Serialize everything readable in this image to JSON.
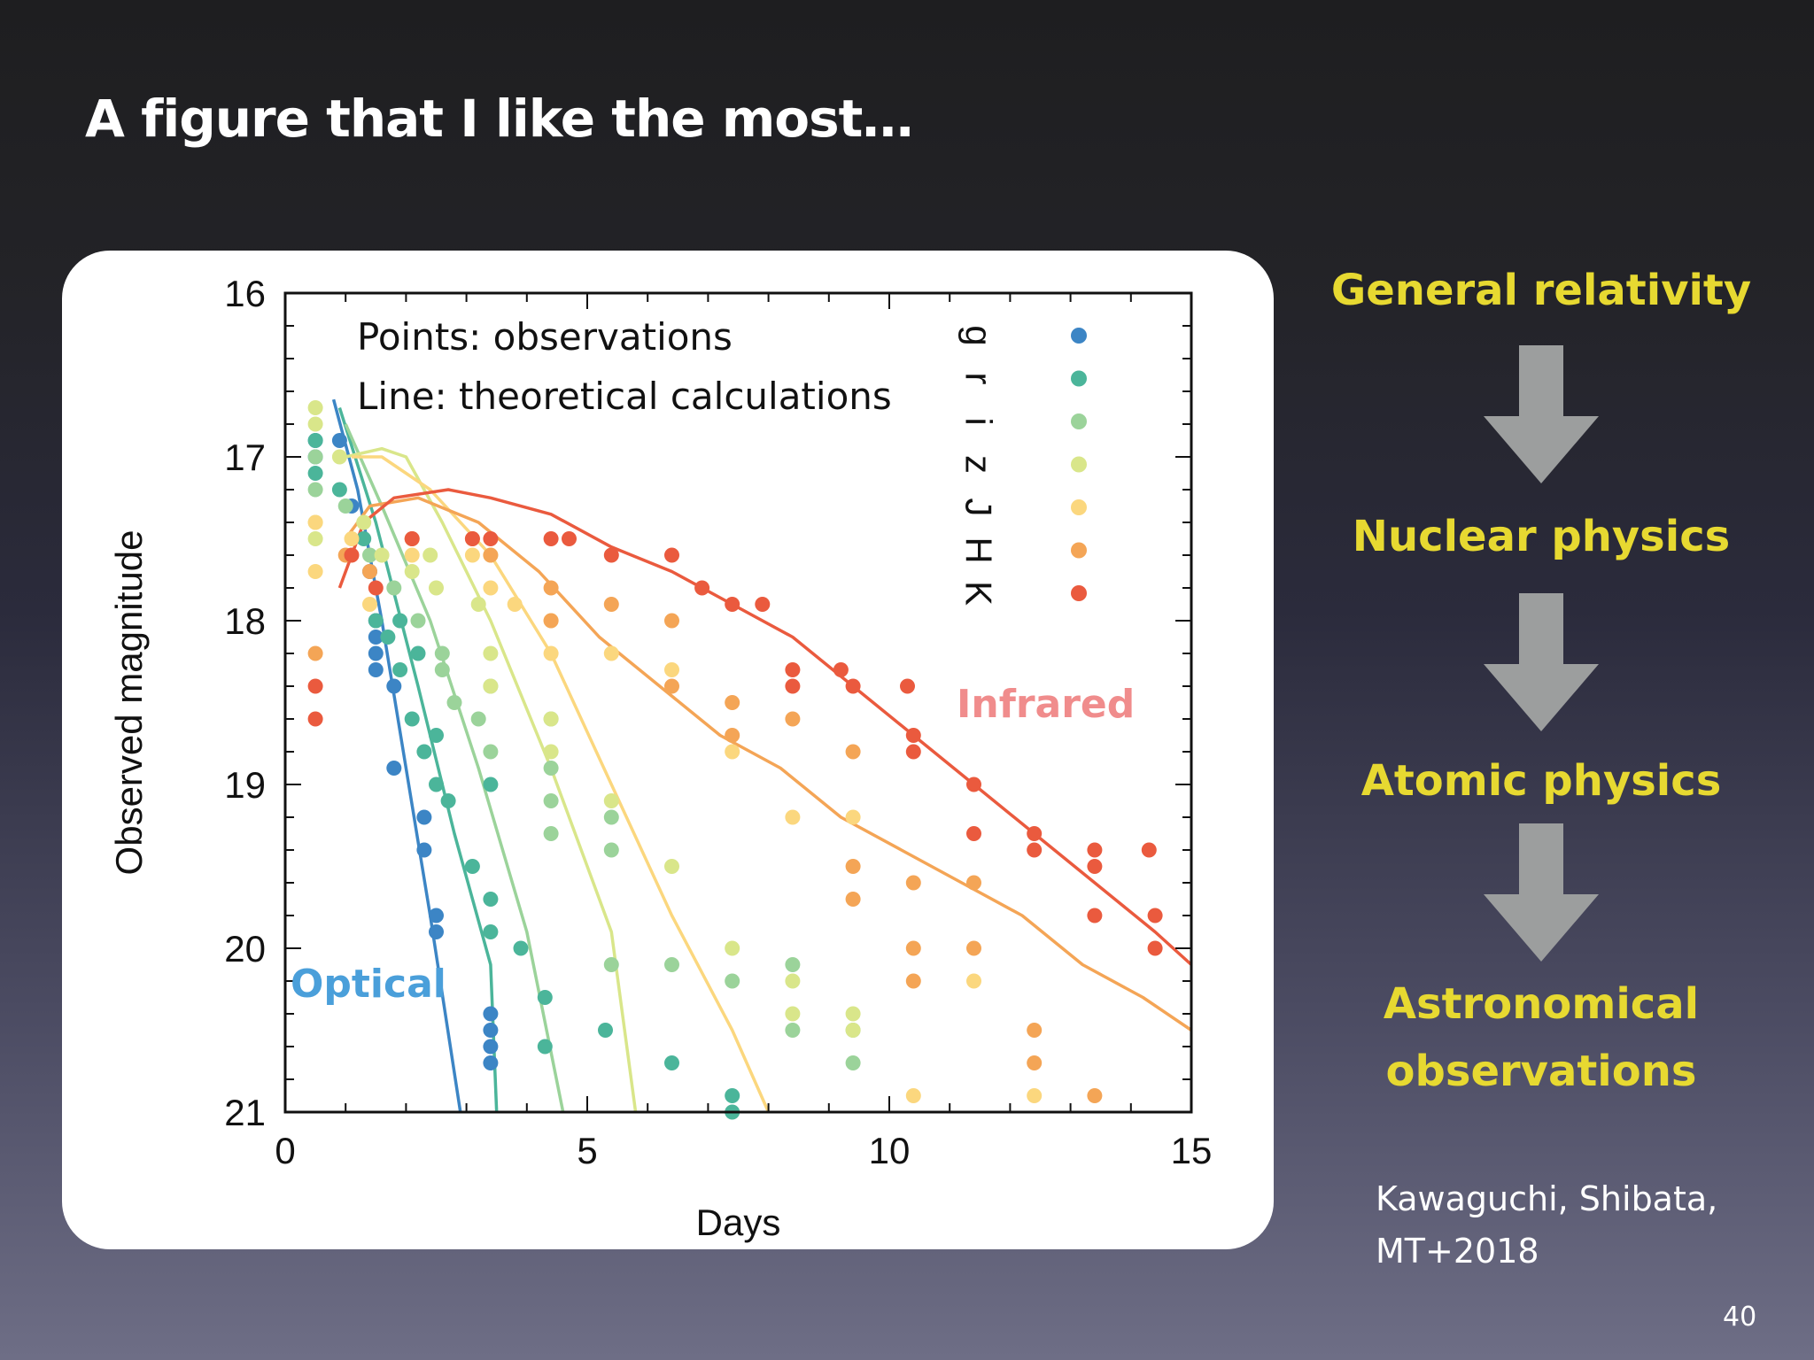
{
  "slide": {
    "title": "A figure that I like the most…",
    "flow": [
      "General relativity",
      "Nuclear physics",
      "Atomic physics",
      "Astronomical",
      "observations"
    ],
    "citation": [
      "Kawaguchi, Shibata,",
      "MT+2018"
    ],
    "page_number": "40",
    "colors": {
      "title": "#ffffff",
      "flow_text": "#e7d931",
      "arrow": "#9c9e9e"
    }
  },
  "chart_data": {
    "type": "scatter",
    "xlabel": "Days",
    "ylabel": "Observed magnitude",
    "xlim": [
      0,
      15
    ],
    "ylim": [
      21,
      16
    ],
    "x_ticks": [
      0,
      5,
      10,
      15
    ],
    "y_ticks": [
      16,
      17,
      18,
      19,
      20,
      21
    ],
    "annotations": {
      "points": "Points: observations",
      "line": "Line: theoretical calculations",
      "optical": "Optical",
      "infrared": "Infrared"
    },
    "annotation_colors": {
      "optical": "#4a9fda",
      "infrared": "#f08c8c"
    },
    "legend": [
      "g",
      "r",
      "i",
      "z",
      "J",
      "H",
      "K"
    ],
    "legend_placement": "top-right",
    "series": [
      {
        "name": "g",
        "color": "#3c85c5",
        "points": [
          [
            0.5,
            16.9
          ],
          [
            0.5,
            17.0
          ],
          [
            0.9,
            16.9
          ],
          [
            1.1,
            17.3
          ],
          [
            1.4,
            17.7
          ],
          [
            1.5,
            18.0
          ],
          [
            1.5,
            18.1
          ],
          [
            1.5,
            18.2
          ],
          [
            1.5,
            18.3
          ],
          [
            1.8,
            18.4
          ],
          [
            1.8,
            18.9
          ],
          [
            2.3,
            19.2
          ],
          [
            2.3,
            19.4
          ],
          [
            2.5,
            19.8
          ],
          [
            2.5,
            19.9
          ],
          [
            3.4,
            20.4
          ],
          [
            3.4,
            20.5
          ],
          [
            3.4,
            20.6
          ],
          [
            3.4,
            20.7
          ]
        ],
        "line": [
          [
            0.8,
            16.65
          ],
          [
            1.2,
            17.2
          ],
          [
            1.6,
            18.0
          ],
          [
            2.0,
            18.9
          ],
          [
            2.4,
            19.8
          ],
          [
            2.9,
            21.0
          ]
        ]
      },
      {
        "name": "r",
        "color": "#4bb59a",
        "points": [
          [
            0.5,
            16.9
          ],
          [
            0.5,
            17.1
          ],
          [
            0.9,
            17.2
          ],
          [
            1.3,
            17.5
          ],
          [
            1.5,
            18.0
          ],
          [
            1.7,
            18.1
          ],
          [
            1.9,
            18.3
          ],
          [
            2.1,
            18.6
          ],
          [
            2.3,
            18.8
          ],
          [
            2.5,
            19.0
          ],
          [
            2.5,
            18.7
          ],
          [
            2.7,
            19.1
          ],
          [
            3.1,
            19.5
          ],
          [
            3.4,
            19.7
          ],
          [
            3.4,
            19.9
          ],
          [
            3.4,
            19.0
          ],
          [
            3.9,
            20.0
          ],
          [
            4.3,
            20.3
          ],
          [
            4.3,
            20.6
          ],
          [
            5.3,
            20.5
          ],
          [
            6.4,
            20.7
          ],
          [
            7.4,
            20.9
          ],
          [
            7.4,
            21.0
          ],
          [
            2.2,
            18.2
          ],
          [
            1.9,
            18.0
          ]
        ],
        "line": [
          [
            0.9,
            16.7
          ],
          [
            1.5,
            17.4
          ],
          [
            2.2,
            18.4
          ],
          [
            2.8,
            19.3
          ],
          [
            3.4,
            20.1
          ],
          [
            3.5,
            21.0
          ]
        ]
      },
      {
        "name": "i",
        "color": "#9bd39a",
        "points": [
          [
            0.5,
            17.0
          ],
          [
            0.5,
            17.2
          ],
          [
            1.0,
            17.3
          ],
          [
            1.4,
            17.6
          ],
          [
            1.8,
            17.8
          ],
          [
            2.2,
            18.0
          ],
          [
            2.6,
            18.2
          ],
          [
            2.8,
            18.5
          ],
          [
            3.2,
            18.6
          ],
          [
            3.4,
            18.8
          ],
          [
            3.4,
            18.4
          ],
          [
            4.4,
            18.9
          ],
          [
            4.4,
            19.1
          ],
          [
            4.4,
            19.3
          ],
          [
            5.4,
            19.2
          ],
          [
            5.4,
            19.4
          ],
          [
            5.4,
            20.1
          ],
          [
            6.4,
            20.1
          ],
          [
            7.4,
            20.2
          ],
          [
            8.4,
            20.1
          ],
          [
            8.4,
            20.5
          ],
          [
            9.4,
            20.5
          ],
          [
            9.4,
            20.7
          ],
          [
            4.4,
            18.6
          ],
          [
            2.6,
            18.3
          ]
        ],
        "line": [
          [
            1.0,
            16.8
          ],
          [
            1.6,
            17.3
          ],
          [
            2.4,
            18.0
          ],
          [
            3.2,
            18.9
          ],
          [
            4.0,
            19.9
          ],
          [
            4.6,
            21.0
          ]
        ]
      },
      {
        "name": "z",
        "color": "#d9e68a",
        "points": [
          [
            0.5,
            16.7
          ],
          [
            0.5,
            16.8
          ],
          [
            0.5,
            17.4
          ],
          [
            0.5,
            17.5
          ],
          [
            0.9,
            17.0
          ],
          [
            1.3,
            17.4
          ],
          [
            1.6,
            17.6
          ],
          [
            2.1,
            17.7
          ],
          [
            2.5,
            17.8
          ],
          [
            3.2,
            17.9
          ],
          [
            3.4,
            18.2
          ],
          [
            3.4,
            18.4
          ],
          [
            4.4,
            18.6
          ],
          [
            4.4,
            18.8
          ],
          [
            5.4,
            19.1
          ],
          [
            6.4,
            19.5
          ],
          [
            7.4,
            20.0
          ],
          [
            8.4,
            20.2
          ],
          [
            8.4,
            20.4
          ],
          [
            9.4,
            20.4
          ],
          [
            9.4,
            20.5
          ],
          [
            3.4,
            17.6
          ],
          [
            2.4,
            17.6
          ]
        ],
        "line": [
          [
            1.0,
            17.0
          ],
          [
            1.6,
            16.95
          ],
          [
            2.0,
            17.0
          ],
          [
            2.6,
            17.4
          ],
          [
            3.4,
            18.0
          ],
          [
            4.4,
            18.9
          ],
          [
            5.4,
            19.9
          ],
          [
            5.8,
            21.0
          ]
        ]
      },
      {
        "name": "J",
        "color": "#fbd77e",
        "points": [
          [
            0.5,
            17.4
          ],
          [
            0.5,
            17.7
          ],
          [
            1.1,
            17.5
          ],
          [
            1.4,
            17.9
          ],
          [
            2.1,
            17.6
          ],
          [
            3.1,
            17.6
          ],
          [
            3.4,
            17.8
          ],
          [
            3.8,
            17.9
          ],
          [
            4.4,
            18.0
          ],
          [
            4.4,
            18.2
          ],
          [
            5.4,
            18.2
          ],
          [
            6.4,
            18.3
          ],
          [
            7.4,
            18.8
          ],
          [
            8.4,
            19.2
          ],
          [
            9.4,
            19.2
          ],
          [
            10.4,
            20.9
          ],
          [
            11.4,
            20.2
          ],
          [
            12.4,
            20.9
          ]
        ],
        "line": [
          [
            1.1,
            17.0
          ],
          [
            1.6,
            17.0
          ],
          [
            2.4,
            17.2
          ],
          [
            3.4,
            17.6
          ],
          [
            4.4,
            18.2
          ],
          [
            5.4,
            19.0
          ],
          [
            6.4,
            19.8
          ],
          [
            7.4,
            20.5
          ],
          [
            8.0,
            21.0
          ]
        ]
      },
      {
        "name": "H",
        "color": "#f4a556",
        "points": [
          [
            0.5,
            18.2
          ],
          [
            1.0,
            17.6
          ],
          [
            1.4,
            17.7
          ],
          [
            2.1,
            17.5
          ],
          [
            3.1,
            17.5
          ],
          [
            3.4,
            17.6
          ],
          [
            4.4,
            17.8
          ],
          [
            4.4,
            18.0
          ],
          [
            5.4,
            17.9
          ],
          [
            6.4,
            18.0
          ],
          [
            6.4,
            18.4
          ],
          [
            7.4,
            18.5
          ],
          [
            7.4,
            18.7
          ],
          [
            8.4,
            18.6
          ],
          [
            9.4,
            18.8
          ],
          [
            9.4,
            19.5
          ],
          [
            9.4,
            19.7
          ],
          [
            10.4,
            19.6
          ],
          [
            10.4,
            20.0
          ],
          [
            10.4,
            20.2
          ],
          [
            11.4,
            19.6
          ],
          [
            11.4,
            20.0
          ],
          [
            12.4,
            20.5
          ],
          [
            12.4,
            20.7
          ],
          [
            13.4,
            20.9
          ]
        ],
        "line": [
          [
            1.0,
            17.5
          ],
          [
            1.4,
            17.3
          ],
          [
            2.2,
            17.25
          ],
          [
            3.2,
            17.4
          ],
          [
            4.2,
            17.7
          ],
          [
            5.2,
            18.1
          ],
          [
            6.2,
            18.4
          ],
          [
            7.2,
            18.7
          ],
          [
            8.2,
            18.9
          ],
          [
            9.2,
            19.2
          ],
          [
            10.2,
            19.4
          ],
          [
            11.2,
            19.6
          ],
          [
            12.2,
            19.8
          ],
          [
            13.2,
            20.1
          ],
          [
            14.2,
            20.3
          ],
          [
            15.0,
            20.5
          ]
        ]
      },
      {
        "name": "K",
        "color": "#ea5a3e",
        "points": [
          [
            0.5,
            18.4
          ],
          [
            0.5,
            18.6
          ],
          [
            1.1,
            17.6
          ],
          [
            1.5,
            17.8
          ],
          [
            2.1,
            17.5
          ],
          [
            3.1,
            17.5
          ],
          [
            3.4,
            17.5
          ],
          [
            4.4,
            17.5
          ],
          [
            4.7,
            17.5
          ],
          [
            5.4,
            17.6
          ],
          [
            6.4,
            17.6
          ],
          [
            6.9,
            17.8
          ],
          [
            7.4,
            17.9
          ],
          [
            7.9,
            17.9
          ],
          [
            8.4,
            18.3
          ],
          [
            8.4,
            18.4
          ],
          [
            9.2,
            18.3
          ],
          [
            9.4,
            18.4
          ],
          [
            10.3,
            18.4
          ],
          [
            10.4,
            18.7
          ],
          [
            10.4,
            18.8
          ],
          [
            11.4,
            19.0
          ],
          [
            11.4,
            19.3
          ],
          [
            12.4,
            19.3
          ],
          [
            12.4,
            19.4
          ],
          [
            13.4,
            19.4
          ],
          [
            13.4,
            19.5
          ],
          [
            13.4,
            19.8
          ],
          [
            14.3,
            19.4
          ],
          [
            14.4,
            19.8
          ],
          [
            14.4,
            20.0
          ]
        ],
        "line": [
          [
            0.9,
            17.8
          ],
          [
            1.3,
            17.4
          ],
          [
            1.8,
            17.25
          ],
          [
            2.7,
            17.2
          ],
          [
            3.4,
            17.25
          ],
          [
            4.4,
            17.35
          ],
          [
            5.4,
            17.55
          ],
          [
            6.4,
            17.7
          ],
          [
            7.4,
            17.9
          ],
          [
            8.4,
            18.1
          ],
          [
            9.4,
            18.4
          ],
          [
            10.4,
            18.7
          ],
          [
            11.4,
            19.0
          ],
          [
            12.4,
            19.3
          ],
          [
            13.4,
            19.6
          ],
          [
            14.4,
            19.9
          ],
          [
            15.0,
            20.1
          ]
        ]
      }
    ]
  }
}
